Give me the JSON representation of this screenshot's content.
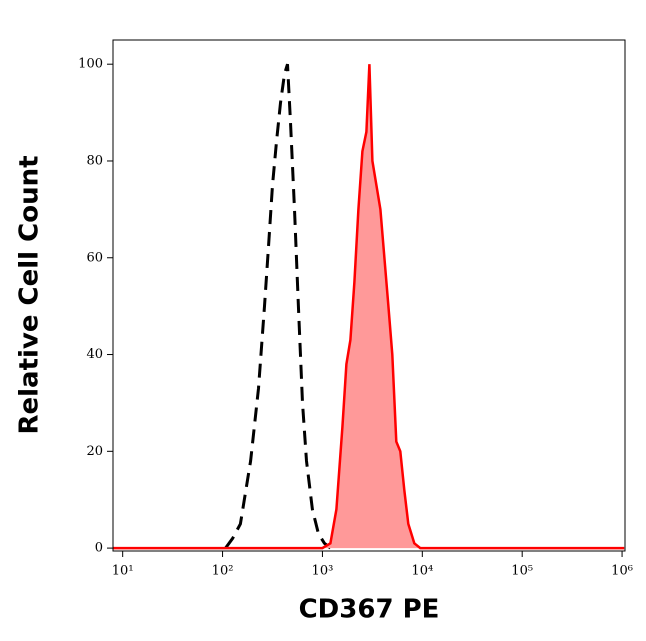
{
  "chart_data": {
    "type": "histogram-overlay",
    "x_label": "CD367 PE",
    "y_label": "Relative Cell Count",
    "x_scale": "log",
    "xlim": [
      8,
      1070000
    ],
    "ylim": [
      -0.6,
      105
    ],
    "xticks": [
      {
        "value": 10,
        "label": "10¹"
      },
      {
        "value": 100,
        "label": "10²"
      },
      {
        "value": 1000,
        "label": "10³"
      },
      {
        "value": 10000,
        "label": "10⁴"
      },
      {
        "value": 100000,
        "label": "10⁵"
      },
      {
        "value": 1000000,
        "label": "10⁶"
      }
    ],
    "yticks": [
      0,
      20,
      40,
      60,
      80,
      100
    ],
    "series": [
      {
        "color": "#000000",
        "dash": true,
        "fill": false,
        "x": [
          107,
          126,
          151,
          191,
          229,
          263,
          288,
          316,
          347,
          380,
          417,
          447,
          479,
          525,
          575,
          631,
          692,
          794,
          912,
          1047,
          1202
        ],
        "values": [
          0,
          2,
          5,
          18,
          33,
          50,
          62,
          75,
          84,
          92,
          98,
          100,
          88,
          70,
          50,
          30,
          18,
          8,
          3,
          1,
          0
        ]
      },
      {
        "color": "#ff0000",
        "dash": false,
        "fill": true,
        "fill_color": "#ff9999",
        "x": [
          8,
          1000,
          1202,
          1380,
          1585,
          1738,
          1905,
          2089,
          2291,
          2512,
          2754,
          2951,
          3162,
          3467,
          3802,
          4169,
          4571,
          5012,
          5495,
          6026,
          6607,
          7244,
          8318,
          9550,
          1050000
        ],
        "values": [
          0,
          0,
          1,
          8,
          25,
          38,
          43,
          55,
          70,
          82,
          86,
          100,
          80,
          75,
          70,
          60,
          50,
          40,
          22,
          20,
          12,
          5,
          1,
          0,
          0
        ]
      }
    ]
  }
}
